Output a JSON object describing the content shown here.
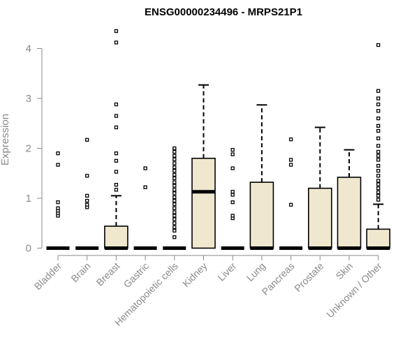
{
  "chart_data": {
    "type": "boxplot",
    "title": "ENSG00000234496 - MRPS21P1",
    "ylabel": "Expression",
    "xlabel": "",
    "ylim": [
      0,
      4.4
    ],
    "yticks": [
      0,
      1,
      2,
      3,
      4
    ],
    "box_fill": "#efe8cf",
    "categories": [
      "Bladder",
      "Brain",
      "Breast",
      "Gastric",
      "Hematopoietic cells",
      "Kidney",
      "Liver",
      "Lung",
      "Pancreas",
      "Prostate",
      "Skin",
      "Unknown / Other"
    ],
    "series": [
      {
        "q1": 0,
        "median": 0,
        "q3": 0,
        "whisker_low": 0,
        "whisker_high": 0,
        "outliers": [
          0.65,
          0.7,
          0.75,
          0.8,
          0.92,
          1.67,
          1.9
        ]
      },
      {
        "q1": 0,
        "median": 0,
        "q3": 0,
        "whisker_low": 0,
        "whisker_high": 0,
        "outliers": [
          0.82,
          0.87,
          0.95,
          1.05,
          1.45,
          2.17
        ]
      },
      {
        "q1": 0,
        "median": 0,
        "q3": 0.44,
        "whisker_low": 0,
        "whisker_high": 1.05,
        "outliers": [
          1.17,
          1.27,
          1.53,
          1.75,
          1.9,
          2.42,
          2.65,
          2.88,
          4.12,
          4.35
        ]
      },
      {
        "q1": 0,
        "median": 0,
        "q3": 0,
        "whisker_low": 0,
        "whisker_high": 0,
        "outliers": [
          1.22,
          1.6
        ]
      },
      {
        "q1": 0,
        "median": 0,
        "q3": 0,
        "whisker_low": 0,
        "whisker_high": 0,
        "outliers": [
          0.22,
          0.35,
          0.42,
          0.5,
          0.58,
          0.65,
          0.72,
          0.8,
          0.88,
          0.95,
          1.02,
          1.1,
          1.17,
          1.25,
          1.32,
          1.4,
          1.47,
          1.55,
          1.62,
          1.7,
          1.78,
          1.85,
          1.93,
          2.0
        ]
      },
      {
        "q1": 0,
        "median": 1.13,
        "q3": 1.8,
        "whisker_low": 0,
        "whisker_high": 3.27,
        "outliers": []
      },
      {
        "q1": 0,
        "median": 0,
        "q3": 0,
        "whisker_low": 0,
        "whisker_high": 0,
        "outliers": [
          0.6,
          0.65,
          0.92,
          1.07,
          1.13,
          1.6,
          1.88,
          1.97
        ]
      },
      {
        "q1": 0,
        "median": 0,
        "q3": 1.32,
        "whisker_low": 0,
        "whisker_high": 2.87,
        "outliers": []
      },
      {
        "q1": 0,
        "median": 0,
        "q3": 0,
        "whisker_low": 0,
        "whisker_high": 0,
        "outliers": [
          0.87,
          1.67,
          1.77,
          2.18
        ]
      },
      {
        "q1": 0,
        "median": 0,
        "q3": 1.2,
        "whisker_low": 0,
        "whisker_high": 2.42,
        "outliers": []
      },
      {
        "q1": 0,
        "median": 0,
        "q3": 1.42,
        "whisker_low": 0,
        "whisker_high": 1.97,
        "outliers": []
      },
      {
        "q1": 0,
        "median": 0,
        "q3": 0.38,
        "whisker_low": 0,
        "whisker_high": 0.88,
        "outliers": [
          0.97,
          1.05,
          1.12,
          1.2,
          1.28,
          1.35,
          1.45,
          1.55,
          1.65,
          1.77,
          1.85,
          1.93,
          2.05,
          2.2,
          2.35,
          2.45,
          2.6,
          2.75,
          2.88,
          3.0,
          3.15,
          4.07
        ]
      }
    ]
  }
}
